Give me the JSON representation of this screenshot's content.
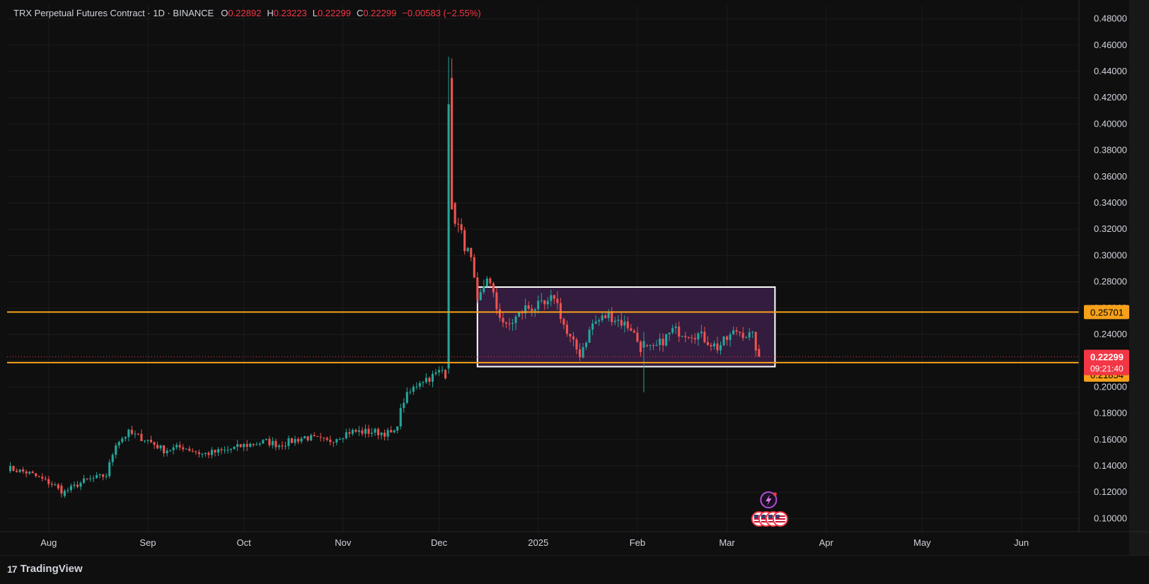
{
  "header": {
    "symbol": "TRX Perpetual Futures Contract · 1D · BINANCE",
    "ohlc": [
      {
        "k": "O",
        "v": "0.22892"
      },
      {
        "k": "H",
        "v": "0.23223"
      },
      {
        "k": "L",
        "v": "0.22299"
      },
      {
        "k": "C",
        "v": "0.22299"
      },
      {
        "k": "",
        "v": "−0.00583 (−2.55%)"
      }
    ]
  },
  "footer": {
    "brand": "TradingView",
    "logo": "17"
  },
  "colors": {
    "background": "#0f0f0f",
    "grid": "#1c1c1c",
    "up": "#26a69a",
    "down": "#ef5350",
    "level_line": "#f7a11a",
    "box_fill": "#3a1f46",
    "box_stroke": "#ffffff",
    "last_price": "#f23645"
  },
  "chart_data": {
    "type": "candlestick",
    "y_axis_labels": [
      "0.48000",
      "0.46000",
      "0.44000",
      "0.42000",
      "0.40000",
      "0.38000",
      "0.36000",
      "0.34000",
      "0.32000",
      "0.30000",
      "0.28000",
      "0.26000",
      "0.24000",
      "0.22000",
      "0.20000",
      "0.18000",
      "0.16000",
      "0.14000",
      "0.12000",
      "0.10000"
    ],
    "y_ticks": [
      0.48,
      0.46,
      0.44,
      0.42,
      0.4,
      0.38,
      0.36,
      0.34,
      0.32,
      0.3,
      0.28,
      0.26,
      0.24,
      0.22,
      0.2,
      0.18,
      0.16,
      0.14,
      0.12,
      0.1
    ],
    "ylim": [
      0.09,
      0.49
    ],
    "x_range": [
      "2024-07-19",
      "2025-06-19"
    ],
    "x_labels": [
      {
        "label": "Aug",
        "date": "2024-08-01"
      },
      {
        "label": "Sep",
        "date": "2024-09-01"
      },
      {
        "label": "Oct",
        "date": "2024-10-01"
      },
      {
        "label": "Nov",
        "date": "2024-11-01"
      },
      {
        "label": "Dec",
        "date": "2024-12-01"
      },
      {
        "label": "2025",
        "date": "2025-01-01"
      },
      {
        "label": "Feb",
        "date": "2025-02-01"
      },
      {
        "label": "Mar",
        "date": "2025-03-01"
      },
      {
        "label": "Apr",
        "date": "2025-04-01"
      },
      {
        "label": "May",
        "date": "2025-05-01"
      },
      {
        "label": "Jun",
        "date": "2025-06-01"
      }
    ],
    "anchors": [
      [
        "2024-07-19",
        0.1385
      ],
      [
        "2024-07-26",
        0.1345
      ],
      [
        "2024-08-03",
        0.125
      ],
      [
        "2024-08-05",
        0.119
      ],
      [
        "2024-08-12",
        0.1285
      ],
      [
        "2024-08-19",
        0.133
      ],
      [
        "2024-08-22",
        0.1575
      ],
      [
        "2024-08-26",
        0.165
      ],
      [
        "2024-09-01",
        0.1595
      ],
      [
        "2024-09-06",
        0.152
      ],
      [
        "2024-09-12",
        0.1545
      ],
      [
        "2024-09-18",
        0.149
      ],
      [
        "2024-09-25",
        0.1515
      ],
      [
        "2024-10-01",
        0.1555
      ],
      [
        "2024-10-08",
        0.1585
      ],
      [
        "2024-10-12",
        0.156
      ],
      [
        "2024-10-20",
        0.162
      ],
      [
        "2024-10-27",
        0.1585
      ],
      [
        "2024-11-03",
        0.166
      ],
      [
        "2024-11-10",
        0.166
      ],
      [
        "2024-11-17",
        0.1645
      ],
      [
        "2024-11-20",
        0.19
      ],
      [
        "2024-11-25",
        0.205
      ],
      [
        "2024-11-29",
        0.208
      ],
      [
        "2024-12-02",
        0.213
      ],
      [
        "2024-12-03",
        0.21
      ],
      [
        "2024-12-04",
        0.415
      ],
      [
        "2024-12-05",
        0.335
      ],
      [
        "2024-12-08",
        0.315
      ],
      [
        "2024-12-11",
        0.295
      ],
      [
        "2024-12-13",
        0.262
      ],
      [
        "2024-12-16",
        0.285
      ],
      [
        "2024-12-19",
        0.26
      ],
      [
        "2024-12-22",
        0.245
      ],
      [
        "2024-12-28",
        0.26
      ],
      [
        "2025-01-04",
        0.262
      ],
      [
        "2025-01-06",
        0.27
      ],
      [
        "2025-01-10",
        0.24
      ],
      [
        "2025-01-14",
        0.225
      ],
      [
        "2025-01-18",
        0.248
      ],
      [
        "2025-01-23",
        0.255
      ],
      [
        "2025-01-30",
        0.245
      ],
      [
        "2025-02-02",
        0.23
      ],
      [
        "2025-02-06",
        0.228
      ],
      [
        "2025-02-12",
        0.243
      ],
      [
        "2025-02-20",
        0.24
      ],
      [
        "2025-02-26",
        0.23
      ],
      [
        "2025-03-04",
        0.243
      ],
      [
        "2025-03-09",
        0.238
      ],
      [
        "2025-03-11",
        0.223
      ]
    ],
    "spikes": [
      {
        "date": "2024-12-04",
        "open": 0.214,
        "high": 0.451,
        "low": 0.21,
        "close": 0.415
      },
      {
        "date": "2024-12-05",
        "open": 0.435,
        "high": 0.45,
        "low": 0.34,
        "close": 0.335
      },
      {
        "date": "2025-02-03",
        "open": 0.23,
        "high": 0.242,
        "low": 0.196,
        "close": 0.235
      },
      {
        "date": "2024-08-05",
        "open": 0.125,
        "high": 0.127,
        "low": 0.116,
        "close": 0.119
      }
    ],
    "last_candle": {
      "open": 0.22892,
      "high": 0.23223,
      "low": 0.22299,
      "close": 0.22299
    },
    "levels": [
      {
        "value": 0.25701,
        "label": "0.25701"
      },
      {
        "value": 0.21854,
        "label": "0.21854"
      }
    ],
    "range_box": {
      "x_start": "2024-12-13",
      "x_end": "2025-03-16",
      "y_top": 0.276,
      "y_bottom": 0.2155
    },
    "last_price": {
      "value": 0.22299,
      "label": "0.22299",
      "countdown": "09:21:40"
    },
    "event_icons": [
      {
        "date": "2025-03-14",
        "kind": "lightning-icon"
      },
      {
        "date": "2025-03-15",
        "kind": "us-flag-icon"
      }
    ],
    "title": "",
    "xlabel": "",
    "ylabel": "",
    "grid": true,
    "legend": "top-left"
  }
}
